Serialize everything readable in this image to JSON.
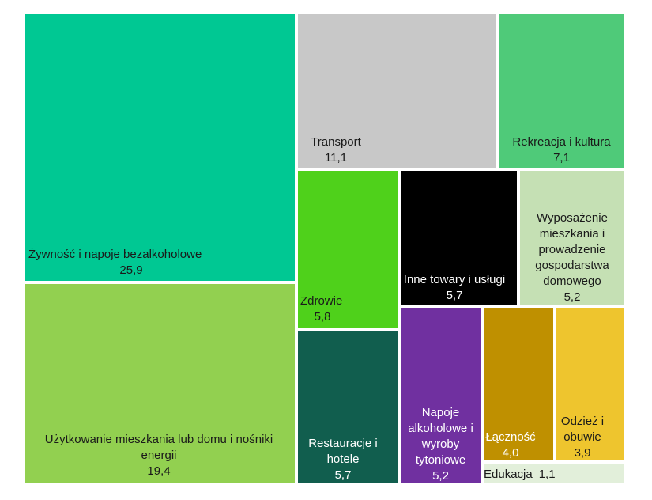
{
  "chart_data": {
    "type": "treemap",
    "items": [
      {
        "name": "Żywność i napoje bezalkoholowe",
        "value": "25,9",
        "color": "#00C893"
      },
      {
        "name": "Użytkowanie mieszkania lub domu i nośniki energii",
        "value": "19,4",
        "color": "#92D050"
      },
      {
        "name": "Transport",
        "value": "11,1",
        "color": "#C8C8C8"
      },
      {
        "name": "Rekreacja i kultura",
        "value": "7,1",
        "color": "#4FCA79"
      },
      {
        "name": "Zdrowie",
        "value": "5,8",
        "color": "#4FD11B"
      },
      {
        "name": "Inne towary i usługi",
        "value": "5,7",
        "color": "#000000"
      },
      {
        "name": "Wyposażenie mieszkania i prowadzenie gospodarstwa domowego",
        "value": "5,2",
        "color": "#C5E0B4"
      },
      {
        "name": "Restauracje i hotele",
        "value": "5,7",
        "color": "#115E4E"
      },
      {
        "name": "Napoje alkoholowe i wyroby tytoniowe",
        "value": "5,2",
        "color": "#7030A0"
      },
      {
        "name": "Łączność",
        "value": "4,0",
        "color": "#BF9000"
      },
      {
        "name": "Odzież i obuwie",
        "value": "3,9",
        "color": "#EEC52E"
      },
      {
        "name": "Edukacja",
        "value": "1,1",
        "color": "#E2EFDA"
      }
    ]
  }
}
